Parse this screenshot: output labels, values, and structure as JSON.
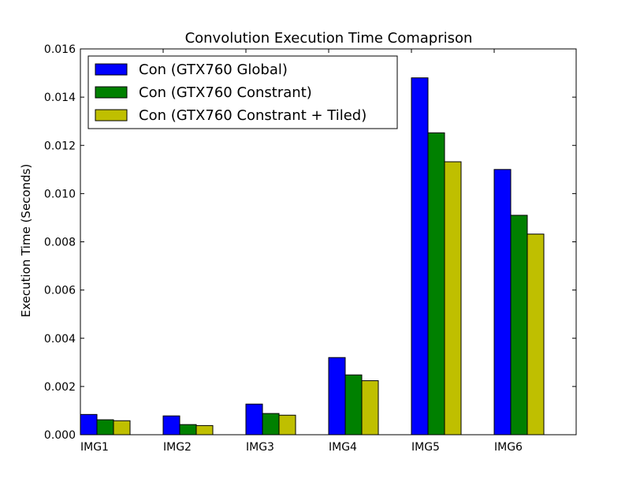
{
  "chart_data": {
    "type": "bar",
    "title": "Convolution Execution Time Comaprison",
    "xlabel": "",
    "ylabel": "Execution Time (Seconds)",
    "categories": [
      "IMG1",
      "IMG2",
      "IMG3",
      "IMG4",
      "IMG5",
      "IMG6"
    ],
    "ylim": [
      0,
      0.016
    ],
    "yticks": [
      "0.000",
      "0.002",
      "0.004",
      "0.006",
      "0.008",
      "0.010",
      "0.012",
      "0.014",
      "0.016"
    ],
    "legend_position": "top-left",
    "grid": false,
    "series": [
      {
        "name": "Con (GTX760 Global)",
        "color": "#0000ff",
        "values": [
          0.00084,
          0.00078,
          0.00127,
          0.0032,
          0.0148,
          0.011
        ]
      },
      {
        "name": "Con (GTX760 Constrant)",
        "color": "#008000",
        "values": [
          0.00062,
          0.00042,
          0.00088,
          0.00248,
          0.01252,
          0.0091
        ]
      },
      {
        "name": "Con (GTX760 Constrant + Tiled)",
        "color": "#bfbf00",
        "values": [
          0.00058,
          0.00038,
          0.00081,
          0.00224,
          0.01132,
          0.00832
        ]
      }
    ]
  }
}
